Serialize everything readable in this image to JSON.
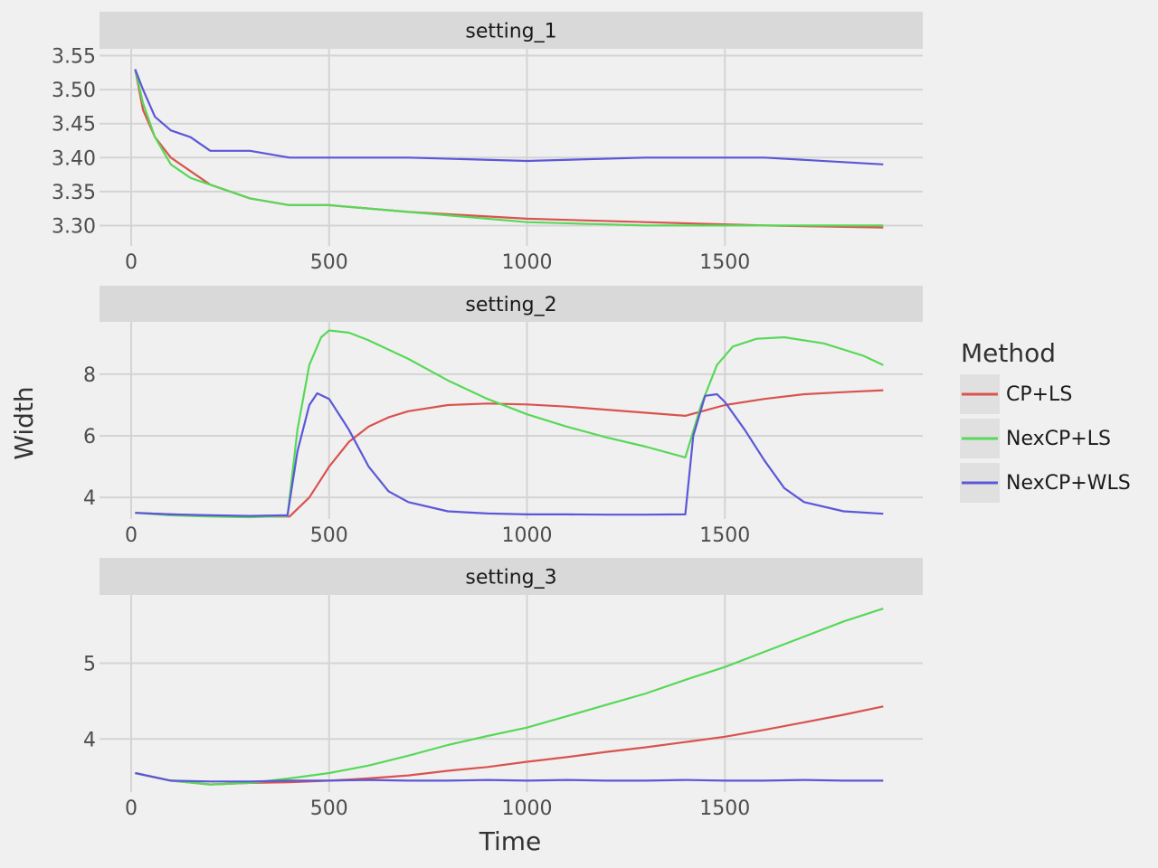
{
  "chart_data": {
    "type": "line",
    "xlabel": "Time",
    "ylabel": "Width",
    "legend": {
      "title": "Method",
      "position": "right",
      "entries": [
        "CP+LS",
        "NexCP+LS",
        "NexCP+WLS"
      ]
    },
    "colors": {
      "CP+LS": "#d9534f",
      "NexCP+LS": "#58d858",
      "NexCP+WLS": "#5b57d8"
    },
    "grid": true,
    "panels": [
      {
        "name": "setting_1",
        "xlim": [
          -80,
          2000
        ],
        "ylim": [
          3.27,
          3.56
        ],
        "xticks": [
          0,
          500,
          1000,
          1500
        ],
        "yticks": [
          3.3,
          3.35,
          3.4,
          3.45,
          3.5,
          3.55
        ],
        "ytick_labels": [
          "3.30",
          "3.35",
          "3.40",
          "3.45",
          "3.50",
          "3.55"
        ],
        "series": [
          {
            "name": "CP+LS",
            "x": [
              10,
              30,
              60,
              100,
              150,
              200,
              300,
              400,
              500,
              700,
              1000,
              1300,
              1600,
              1900
            ],
            "y": [
              3.53,
              3.47,
              3.43,
              3.4,
              3.38,
              3.36,
              3.34,
              3.33,
              3.33,
              3.32,
              3.31,
              3.305,
              3.3,
              3.297
            ]
          },
          {
            "name": "NexCP+LS",
            "x": [
              10,
              30,
              60,
              100,
              150,
              200,
              300,
              400,
              500,
              700,
              1000,
              1300,
              1600,
              1900
            ],
            "y": [
              3.53,
              3.48,
              3.43,
              3.39,
              3.37,
              3.36,
              3.34,
              3.33,
              3.33,
              3.32,
              3.305,
              3.3,
              3.3,
              3.3
            ]
          },
          {
            "name": "NexCP+WLS",
            "x": [
              10,
              30,
              60,
              100,
              150,
              200,
              300,
              400,
              500,
              700,
              1000,
              1300,
              1600,
              1900
            ],
            "y": [
              3.53,
              3.5,
              3.46,
              3.44,
              3.43,
              3.41,
              3.41,
              3.4,
              3.4,
              3.4,
              3.395,
              3.4,
              3.4,
              3.39
            ]
          }
        ]
      },
      {
        "name": "setting_2",
        "xlim": [
          -80,
          2000
        ],
        "ylim": [
          3.3,
          9.7
        ],
        "xticks": [
          0,
          500,
          1000,
          1500
        ],
        "yticks": [
          4,
          6,
          8
        ],
        "ytick_labels": [
          "4",
          "6",
          "8"
        ],
        "series": [
          {
            "name": "CP+LS",
            "x": [
              10,
              100,
              200,
              300,
              400,
              450,
              500,
              550,
              600,
              650,
              700,
              800,
              900,
              1000,
              1100,
              1200,
              1300,
              1400,
              1500,
              1600,
              1700,
              1800,
              1900
            ],
            "y": [
              3.5,
              3.45,
              3.4,
              3.38,
              3.38,
              4.0,
              5.0,
              5.8,
              6.3,
              6.6,
              6.8,
              7.0,
              7.05,
              7.02,
              6.95,
              6.85,
              6.75,
              6.65,
              7.0,
              7.2,
              7.35,
              7.42,
              7.48
            ]
          },
          {
            "name": "NexCP+LS",
            "x": [
              10,
              100,
              200,
              300,
              395,
              420,
              450,
              480,
              500,
              550,
              600,
              700,
              800,
              900,
              1000,
              1100,
              1200,
              1300,
              1400,
              1440,
              1480,
              1520,
              1580,
              1650,
              1750,
              1850,
              1900
            ],
            "y": [
              3.5,
              3.42,
              3.38,
              3.36,
              3.4,
              6.2,
              8.3,
              9.2,
              9.42,
              9.35,
              9.1,
              8.5,
              7.8,
              7.2,
              6.7,
              6.3,
              5.95,
              5.65,
              5.3,
              7.0,
              8.3,
              8.9,
              9.15,
              9.2,
              9.0,
              8.6,
              8.3
            ]
          },
          {
            "name": "NexCP+WLS",
            "x": [
              10,
              100,
              200,
              300,
              395,
              420,
              450,
              470,
              500,
              550,
              600,
              650,
              700,
              800,
              900,
              1000,
              1100,
              1200,
              1300,
              1400,
              1420,
              1450,
              1480,
              1500,
              1550,
              1600,
              1650,
              1700,
              1800,
              1900
            ],
            "y": [
              3.5,
              3.45,
              3.42,
              3.4,
              3.42,
              5.5,
              7.0,
              7.38,
              7.2,
              6.2,
              5.0,
              4.2,
              3.85,
              3.55,
              3.48,
              3.45,
              3.45,
              3.44,
              3.44,
              3.45,
              6.0,
              7.3,
              7.35,
              7.1,
              6.2,
              5.2,
              4.3,
              3.85,
              3.55,
              3.47
            ]
          }
        ]
      },
      {
        "name": "setting_3",
        "xlim": [
          -80,
          2000
        ],
        "ylim": [
          3.3,
          5.9
        ],
        "xticks": [
          0,
          500,
          1000,
          1500
        ],
        "yticks": [
          4,
          5
        ],
        "ytick_labels": [
          "4",
          "5"
        ],
        "series": [
          {
            "name": "CP+LS",
            "x": [
              10,
              100,
              200,
              300,
              400,
              500,
              600,
              700,
              800,
              900,
              1000,
              1100,
              1200,
              1300,
              1400,
              1500,
              1600,
              1700,
              1800,
              1900
            ],
            "y": [
              3.55,
              3.45,
              3.4,
              3.42,
              3.43,
              3.45,
              3.48,
              3.52,
              3.58,
              3.63,
              3.7,
              3.76,
              3.83,
              3.89,
              3.96,
              4.03,
              4.12,
              4.22,
              4.32,
              4.43
            ]
          },
          {
            "name": "NexCP+LS",
            "x": [
              10,
              100,
              200,
              300,
              400,
              500,
              600,
              700,
              800,
              900,
              1000,
              1100,
              1200,
              1300,
              1400,
              1500,
              1600,
              1700,
              1800,
              1900
            ],
            "y": [
              3.55,
              3.45,
              3.4,
              3.42,
              3.48,
              3.55,
              3.65,
              3.78,
              3.92,
              4.04,
              4.15,
              4.3,
              4.45,
              4.6,
              4.78,
              4.95,
              5.15,
              5.35,
              5.55,
              5.72
            ]
          },
          {
            "name": "NexCP+WLS",
            "x": [
              10,
              100,
              200,
              300,
              400,
              500,
              600,
              700,
              800,
              900,
              1000,
              1100,
              1200,
              1300,
              1400,
              1500,
              1600,
              1700,
              1800,
              1900
            ],
            "y": [
              3.55,
              3.45,
              3.44,
              3.44,
              3.45,
              3.45,
              3.46,
              3.45,
              3.45,
              3.46,
              3.45,
              3.46,
              3.45,
              3.45,
              3.46,
              3.45,
              3.45,
              3.46,
              3.45,
              3.45
            ]
          }
        ]
      }
    ]
  }
}
